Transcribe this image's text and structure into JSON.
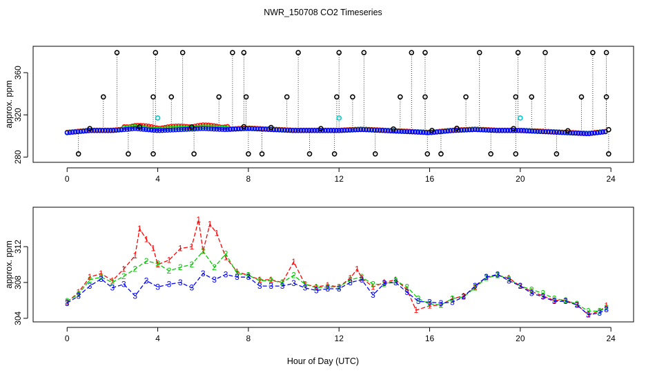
{
  "title": "NWR_150708  CO2 Timeseries",
  "colors": {
    "s1": "#ff0000",
    "s2": "#00cc00",
    "s3": "#0000ff",
    "flag": "#000000",
    "cyan": "#00cccc"
  },
  "chart_data": [
    {
      "type": "scatter",
      "name": "raw-panel",
      "xlabel": "",
      "ylabel": "approx. ppm",
      "xlim": [
        -1.5,
        25
      ],
      "ylim": [
        275,
        385
      ],
      "xticks": [
        0,
        4,
        8,
        12,
        16,
        20,
        24
      ],
      "yticks": [
        280,
        320,
        360
      ],
      "baseline": {
        "hours": [
          0,
          1,
          2,
          3,
          4,
          5,
          6,
          7,
          8,
          9,
          10,
          11,
          12,
          13,
          14,
          15,
          16,
          17,
          18,
          19,
          20,
          21,
          22,
          23,
          23.8
        ],
        "ppm": [
          303,
          305,
          305,
          307,
          305,
          306,
          307,
          306,
          307,
          306,
          305,
          305,
          305,
          306,
          305,
          304,
          303,
          305,
          306,
          305,
          305,
          304,
          303,
          302,
          304
        ]
      },
      "flags_high": [
        2.2,
        3.9,
        5.1,
        7.3,
        7.8,
        10.2,
        12.0,
        13.1,
        15.2,
        15.8,
        18.2,
        19.9,
        21.1,
        23.2,
        23.8
      ],
      "flags_mid": [
        1.6,
        3.8,
        4.6,
        6.7,
        7.9,
        9.7,
        11.9,
        12.6,
        14.7,
        15.8,
        17.6,
        19.8,
        20.5,
        22.7,
        23.8
      ],
      "flags_low": [
        0.5,
        2.7,
        3.8,
        5.6,
        8.0,
        8.6,
        10.7,
        11.8,
        13.6,
        15.9,
        16.5,
        18.7,
        19.8,
        21.6,
        23.9
      ],
      "flags_base": [
        1.0,
        3.2,
        5.5,
        7.8,
        9.0,
        11.2,
        14.4,
        16.1,
        17.2,
        19.7,
        22.1,
        23.9
      ],
      "cyan_points": [
        [
          4.0,
          317
        ],
        [
          12.0,
          317
        ],
        [
          20.0,
          317
        ]
      ]
    },
    {
      "type": "line",
      "name": "detail-panel",
      "xlabel": "Hour of Day (UTC)",
      "ylabel": "approx. ppm",
      "xlim": [
        -1.5,
        25
      ],
      "ylim": [
        303.6,
        316.4
      ],
      "xticks": [
        0,
        4,
        8,
        12,
        16,
        20,
        24
      ],
      "yticks": [
        304,
        308,
        312
      ],
      "series": [
        {
          "name": "1",
          "hours": [
            0,
            0.5,
            1,
            1.5,
            2,
            2.5,
            3,
            3.2,
            3.5,
            3.8,
            4,
            4.5,
            5,
            5.5,
            5.8,
            6,
            6.3,
            6.6,
            7,
            7.5,
            8,
            8.5,
            9,
            9.5,
            10,
            10.5,
            11,
            11.5,
            12,
            12.5,
            12.8,
            13,
            13.5,
            14,
            14.5,
            15,
            15.4,
            16,
            16.5,
            17,
            17.5,
            18,
            18.5,
            19,
            19.5,
            20,
            20.5,
            21,
            21.5,
            22,
            22.5,
            23,
            23.5,
            23.8
          ],
          "ppm": [
            305.8,
            306.9,
            308.6,
            309.0,
            308.2,
            309.5,
            311.0,
            314.0,
            312.8,
            311.8,
            310.0,
            310.5,
            311.8,
            312.0,
            315.0,
            311.5,
            314.5,
            313.5,
            310.8,
            309.2,
            308.8,
            308.3,
            308.3,
            308.0,
            310.3,
            307.8,
            307.5,
            307.7,
            307.5,
            308.5,
            309.5,
            308.5,
            307.5,
            308.0,
            308.3,
            307.2,
            304.9,
            305.4,
            305.5,
            306.2,
            306.5,
            307.5,
            308.6,
            308.8,
            308.5,
            307.6,
            307.0,
            306.5,
            306.0,
            306.0,
            305.5,
            304.4,
            304.8,
            305.4
          ]
        },
        {
          "name": "2",
          "hours": [
            0,
            0.5,
            1,
            1.5,
            2,
            2.5,
            3,
            3.5,
            4,
            4.5,
            5,
            5.5,
            6,
            6.5,
            7,
            7.5,
            8,
            8.5,
            9,
            9.5,
            10,
            10.5,
            11,
            11.5,
            12,
            12.5,
            13,
            13.5,
            14,
            14.5,
            15,
            15.5,
            16,
            16.5,
            17,
            17.5,
            18,
            18.5,
            19,
            19.5,
            20,
            20.5,
            21,
            21.5,
            22,
            22.5,
            23,
            23.5,
            23.8
          ],
          "ppm": [
            305.9,
            306.7,
            308.3,
            308.6,
            308.0,
            308.7,
            309.5,
            310.4,
            310.1,
            309.3,
            309.7,
            310.0,
            311.5,
            309.7,
            311.2,
            309.0,
            308.8,
            308.2,
            308.2,
            308.0,
            308.8,
            307.8,
            307.4,
            307.5,
            307.5,
            308.3,
            308.6,
            307.8,
            307.8,
            308.2,
            307.5,
            306.2,
            305.6,
            305.5,
            306.2,
            306.4,
            307.4,
            308.5,
            308.8,
            308.4,
            307.6,
            307.2,
            306.8,
            306.2,
            306.0,
            305.6,
            304.8,
            304.8,
            305.2
          ]
        },
        {
          "name": "3",
          "hours": [
            0,
            0.5,
            1,
            1.5,
            2,
            2.5,
            3,
            3.5,
            4,
            4.5,
            5,
            5.5,
            6,
            6.5,
            7,
            7.5,
            8,
            8.5,
            9,
            9.5,
            10,
            10.5,
            11,
            11.5,
            12,
            12.5,
            13,
            13.5,
            14,
            14.5,
            15,
            15.5,
            16,
            16.5,
            17,
            17.5,
            18,
            18.5,
            19,
            19.5,
            20,
            20.5,
            21,
            21.5,
            22,
            22.5,
            23,
            23.5,
            23.8
          ],
          "ppm": [
            305.7,
            306.5,
            307.6,
            308.4,
            307.4,
            307.8,
            306.5,
            308.2,
            307.5,
            307.8,
            308.0,
            307.4,
            309.0,
            308.3,
            308.9,
            308.6,
            308.6,
            307.6,
            307.6,
            307.6,
            307.9,
            307.4,
            307.1,
            307.3,
            307.3,
            308.0,
            308.3,
            306.6,
            307.9,
            308.0,
            306.9,
            305.9,
            305.8,
            305.7,
            305.8,
            306.4,
            307.6,
            308.6,
            308.9,
            308.2,
            307.6,
            306.8,
            306.4,
            305.9,
            305.9,
            305.5,
            304.4,
            304.6,
            305.0
          ]
        }
      ]
    }
  ]
}
